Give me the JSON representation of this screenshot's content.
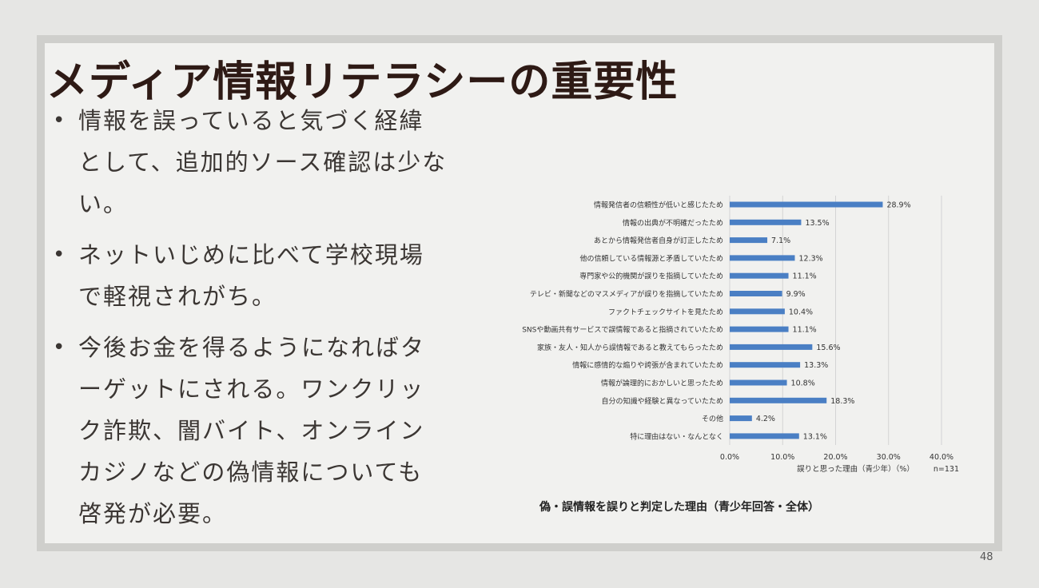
{
  "slide": {
    "title": "メディア情報リテラシーの重要性",
    "bullet_marker": "•",
    "bullets": [
      "情報を誤っていると気づく経緯として、追加的ソース確認は少ない。",
      "ネットいじめに比べて学校現場で軽視されがち。",
      "今後お金を得るようになればターゲットにされる。ワンクリック詐欺、闇バイト、オンラインカジノなどの偽情報についても啓発が必要。"
    ],
    "caption": "偽・誤情報を誤りと判定した理由（青少年回答・全体）",
    "page_number": "48"
  },
  "chart_data": {
    "type": "bar",
    "orientation": "horizontal",
    "categories": [
      "情報発信者の信頼性が低いと感じたため",
      "情報の出典が不明確だったため",
      "あとから情報発信者自身が訂正したため",
      "他の信頼している情報源と矛盾していたため",
      "専門家や公的機関が誤りを指摘していたため",
      "テレビ・新聞などのマスメディアが誤りを指摘していたため",
      "ファクトチェックサイトを見たため",
      "SNSや動画共有サービスで誤情報であると指摘されていたため",
      "家族・友人・知人から誤情報であると教えてもらったため",
      "情報に感情的な煽りや誇張が含まれていたため",
      "情報が論理的におかしいと思ったため",
      "自分の知識や経験と異なっていたため",
      "その他",
      "特に理由はない・なんとなく"
    ],
    "values": [
      28.9,
      13.5,
      7.1,
      12.3,
      11.1,
      9.9,
      10.4,
      11.1,
      15.6,
      13.3,
      10.8,
      18.3,
      4.2,
      13.1
    ],
    "value_labels": [
      "28.9%",
      "13.5%",
      "7.1%",
      "12.3%",
      "11.1%",
      "9.9%",
      "10.4%",
      "11.1%",
      "15.6%",
      "13.3%",
      "10.8%",
      "18.3%",
      "4.2%",
      "13.1%"
    ],
    "xlim": [
      0,
      40
    ],
    "xticks": [
      0,
      10,
      20,
      30,
      40
    ],
    "xtick_labels": [
      "0.0%",
      "10.0%",
      "20.0%",
      "30.0%",
      "40.0%"
    ],
    "xlabel": "誤りと思った理由（青少年）（%）",
    "n_label": "n=131",
    "grid": true,
    "bar_color": "#4a7fc4",
    "grid_color": "#d4d4d4"
  }
}
